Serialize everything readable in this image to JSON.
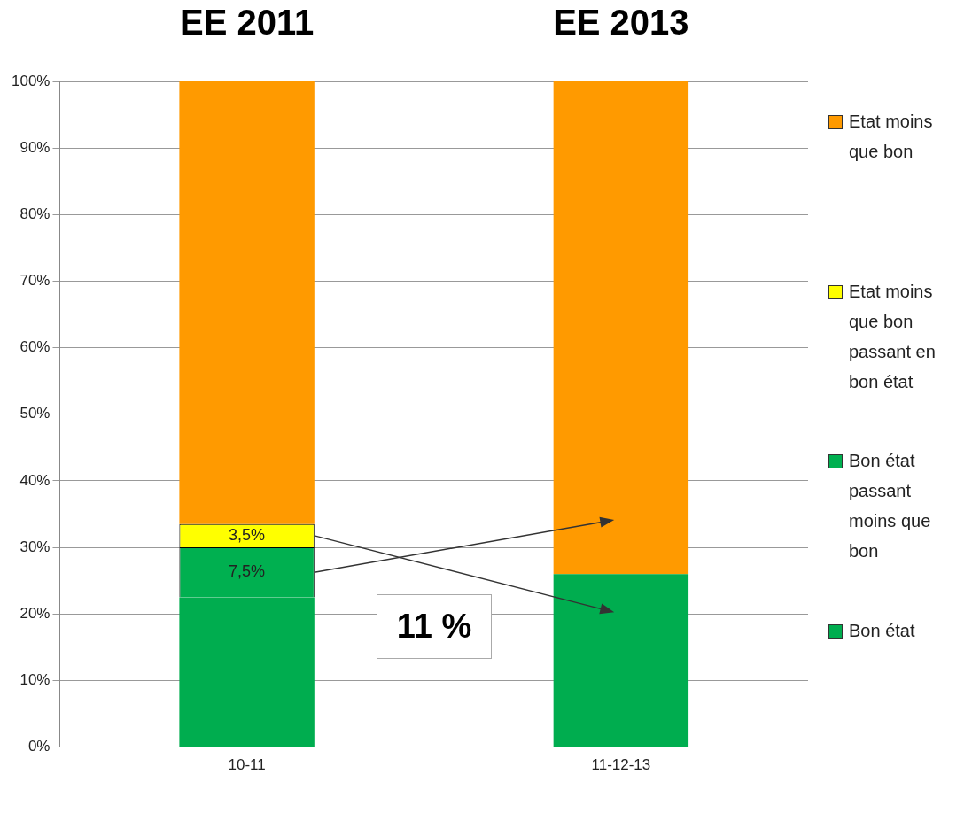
{
  "chart_data": {
    "type": "bar",
    "stacked": true,
    "categories": [
      "10-11",
      "11-12-13"
    ],
    "series": [
      {
        "name": "Bon état",
        "color": "#00ad4f",
        "values": [
          22.5,
          26
        ]
      },
      {
        "name": "Bon état passant moins que bon",
        "color": "#00b050",
        "values": [
          7.5,
          0
        ],
        "value_labels": [
          "7,5%",
          null
        ]
      },
      {
        "name": "Etat moins que bon passant en bon état",
        "color": "#ffff00",
        "values": [
          3.5,
          0
        ],
        "value_labels": [
          "3,5%",
          null
        ]
      },
      {
        "name": "Etat moins que bon",
        "color": "#ff9a00",
        "values": [
          66.5,
          74
        ]
      }
    ],
    "ylim": [
      0,
      100
    ],
    "yticks": [
      {
        "value": 0,
        "label": "0%"
      },
      {
        "value": 10,
        "label": "10%"
      },
      {
        "value": 20,
        "label": "20%"
      },
      {
        "value": 30,
        "label": "30%"
      },
      {
        "value": 40,
        "label": "40%"
      },
      {
        "value": 50,
        "label": "50%"
      },
      {
        "value": 60,
        "label": "60%"
      },
      {
        "value": 70,
        "label": "70%"
      },
      {
        "value": 80,
        "label": "80%"
      },
      {
        "value": 90,
        "label": "90%"
      },
      {
        "value": 100,
        "label": "100%"
      }
    ],
    "grid": "y",
    "legend": "right",
    "annotations": [
      "EE 2011",
      "EE 2013",
      "11 %"
    ]
  }
}
